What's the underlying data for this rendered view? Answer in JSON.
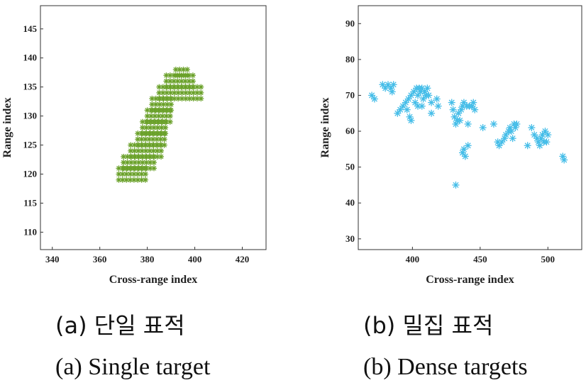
{
  "chart_data": [
    {
      "type": "scatter",
      "panel": "a",
      "xlabel": "Cross-range index",
      "ylabel": "Range index",
      "xlim": [
        335,
        430
      ],
      "ylim": [
        107,
        149
      ],
      "xticks": [
        340,
        360,
        380,
        400,
        420
      ],
      "yticks": [
        110,
        115,
        120,
        125,
        130,
        135,
        140,
        145
      ],
      "marker": "asterisk",
      "color": "#6aa12a",
      "regions": [
        {
          "x0": 368,
          "x1": 380,
          "y0": 119,
          "y1": 121
        },
        {
          "x0": 370,
          "x1": 383,
          "y0": 121,
          "y1": 123
        },
        {
          "x0": 373,
          "x1": 386,
          "y0": 123,
          "y1": 125
        },
        {
          "x0": 376,
          "x1": 388,
          "y0": 125,
          "y1": 127
        },
        {
          "x0": 378,
          "x1": 389,
          "y0": 127,
          "y1": 129
        },
        {
          "x0": 380,
          "x1": 390,
          "y0": 129,
          "y1": 131
        },
        {
          "x0": 382,
          "x1": 391,
          "y0": 131,
          "y1": 133
        },
        {
          "x0": 385,
          "x1": 403,
          "y0": 133,
          "y1": 135
        },
        {
          "x0": 388,
          "x1": 400,
          "y0": 135,
          "y1": 137
        },
        {
          "x0": 392,
          "x1": 397,
          "y0": 137,
          "y1": 138
        }
      ]
    },
    {
      "type": "scatter",
      "panel": "b",
      "xlabel": "Cross-range index",
      "ylabel": "Range index",
      "xlim": [
        360,
        525
      ],
      "ylim": [
        27,
        95
      ],
      "xticks": [
        400,
        450,
        500
      ],
      "yticks": [
        30,
        40,
        50,
        60,
        70,
        80,
        90
      ],
      "marker": "asterisk",
      "color": "#45bde8",
      "points": [
        [
          370,
          70
        ],
        [
          372,
          69
        ],
        [
          378,
          73
        ],
        [
          380,
          72
        ],
        [
          382,
          73
        ],
        [
          384,
          72
        ],
        [
          386,
          73
        ],
        [
          385,
          71
        ],
        [
          389,
          65
        ],
        [
          391,
          66
        ],
        [
          393,
          67
        ],
        [
          395,
          68
        ],
        [
          397,
          69
        ],
        [
          396,
          66
        ],
        [
          398,
          64
        ],
        [
          399,
          70
        ],
        [
          401,
          71
        ],
        [
          403,
          72
        ],
        [
          404,
          70
        ],
        [
          405,
          72
        ],
        [
          406,
          71
        ],
        [
          407,
          72
        ],
        [
          408,
          69
        ],
        [
          409,
          71
        ],
        [
          410,
          70
        ],
        [
          411,
          72
        ],
        [
          412,
          70
        ],
        [
          402,
          68
        ],
        [
          399,
          63
        ],
        [
          404,
          67
        ],
        [
          407,
          67
        ],
        [
          414,
          68
        ],
        [
          418,
          69
        ],
        [
          419,
          67
        ],
        [
          414,
          65
        ],
        [
          429,
          68
        ],
        [
          430,
          66
        ],
        [
          431,
          64
        ],
        [
          432,
          62
        ],
        [
          433,
          63
        ],
        [
          434,
          65
        ],
        [
          435,
          63
        ],
        [
          436,
          66
        ],
        [
          437,
          67
        ],
        [
          438,
          68
        ],
        [
          440,
          67
        ],
        [
          442,
          67
        ],
        [
          444,
          67
        ],
        [
          446,
          66
        ],
        [
          445,
          68
        ],
        [
          441,
          62
        ],
        [
          437,
          54
        ],
        [
          438,
          55
        ],
        [
          439,
          53
        ],
        [
          441,
          56
        ],
        [
          432,
          45
        ],
        [
          452,
          61
        ],
        [
          460,
          62
        ],
        [
          463,
          57
        ],
        [
          464,
          56
        ],
        [
          466,
          57
        ],
        [
          468,
          58
        ],
        [
          469,
          59
        ],
        [
          471,
          60
        ],
        [
          472,
          61
        ],
        [
          473,
          60
        ],
        [
          475,
          62
        ],
        [
          476,
          61
        ],
        [
          477,
          62
        ],
        [
          474,
          58
        ],
        [
          485,
          56
        ],
        [
          488,
          61
        ],
        [
          490,
          59
        ],
        [
          492,
          58
        ],
        [
          493,
          57
        ],
        [
          495,
          58
        ],
        [
          496,
          59
        ],
        [
          497,
          57
        ],
        [
          498,
          60
        ],
        [
          500,
          59
        ],
        [
          494,
          56
        ],
        [
          499,
          57
        ],
        [
          511,
          53
        ],
        [
          512,
          52
        ]
      ]
    }
  ],
  "captions": {
    "a_ko": "(a) 단일 표적",
    "b_ko": "(b) 밀집 표적",
    "a_en": "(a) Single target",
    "b_en": "(b) Dense targets"
  }
}
